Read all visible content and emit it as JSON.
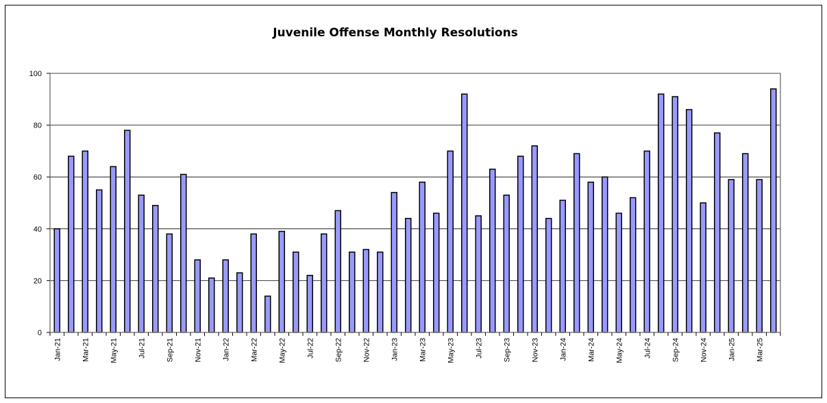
{
  "chart_data": {
    "type": "bar",
    "title": "Juvenile Offense Monthly Resolutions",
    "xlabel": "",
    "ylabel": "",
    "ylim": [
      0,
      100
    ],
    "yticks": [
      0,
      20,
      40,
      60,
      80,
      100
    ],
    "grid": "horizontal",
    "legend": "none",
    "colors": {
      "bar_fill": "#9999ff",
      "bar_stroke": "#000000",
      "plot_border": "#808080",
      "grid": "#000000"
    },
    "categories": [
      "Jan-21",
      "Feb-21",
      "Mar-21",
      "Apr-21",
      "May-21",
      "Jun-21",
      "Jul-21",
      "Aug-21",
      "Sep-21",
      "Oct-21",
      "Nov-21",
      "Dec-21",
      "Jan-22",
      "Feb-22",
      "Mar-22",
      "Apr-22",
      "May-22",
      "Jun-22",
      "Jul-22",
      "Aug-22",
      "Sep-22",
      "Oct-22",
      "Nov-22",
      "Dec-22",
      "Jan-23",
      "Feb-23",
      "Mar-23",
      "Apr-23",
      "May-23",
      "Jun-23",
      "Jul-23",
      "Aug-23",
      "Sep-23",
      "Oct-23",
      "Nov-23",
      "Dec-23",
      "Jan-24",
      "Feb-24",
      "Mar-24",
      "Apr-24",
      "May-24",
      "Jun-24",
      "Jul-24",
      "Aug-24",
      "Sep-24",
      "Oct-24",
      "Nov-24",
      "Dec-24",
      "Jan-25",
      "Feb-25",
      "Mar-25",
      "Apr-25"
    ],
    "tick_labels": [
      "Jan-21",
      "",
      "Mar-21",
      "",
      "May-21",
      "",
      "Jul-21",
      "",
      "Sep-21",
      "",
      "Nov-21",
      "",
      "Jan-22",
      "",
      "Mar-22",
      "",
      "May-22",
      "",
      "Jul-22",
      "",
      "Sep-22",
      "",
      "Nov-22",
      "",
      "Jan-23",
      "",
      "Mar-23",
      "",
      "May-23",
      "",
      "Jul-23",
      "",
      "Sep-23",
      "",
      "Nov-23",
      "",
      "Jan-24",
      "",
      "Mar-24",
      "",
      "May-24",
      "",
      "Jul-24",
      "",
      "Sep-24",
      "",
      "Nov-24",
      "",
      "Jan-25",
      "",
      "Mar-25",
      ""
    ],
    "values": [
      40,
      68,
      70,
      55,
      64,
      78,
      53,
      49,
      38,
      61,
      28,
      21,
      28,
      23,
      38,
      14,
      39,
      31,
      22,
      38,
      47,
      31,
      32,
      31,
      54,
      44,
      58,
      46,
      70,
      92,
      45,
      63,
      53,
      68,
      72,
      44,
      51,
      69,
      58,
      60,
      46,
      52,
      70,
      92,
      91,
      86,
      50,
      77,
      59,
      69,
      59,
      94
    ]
  }
}
